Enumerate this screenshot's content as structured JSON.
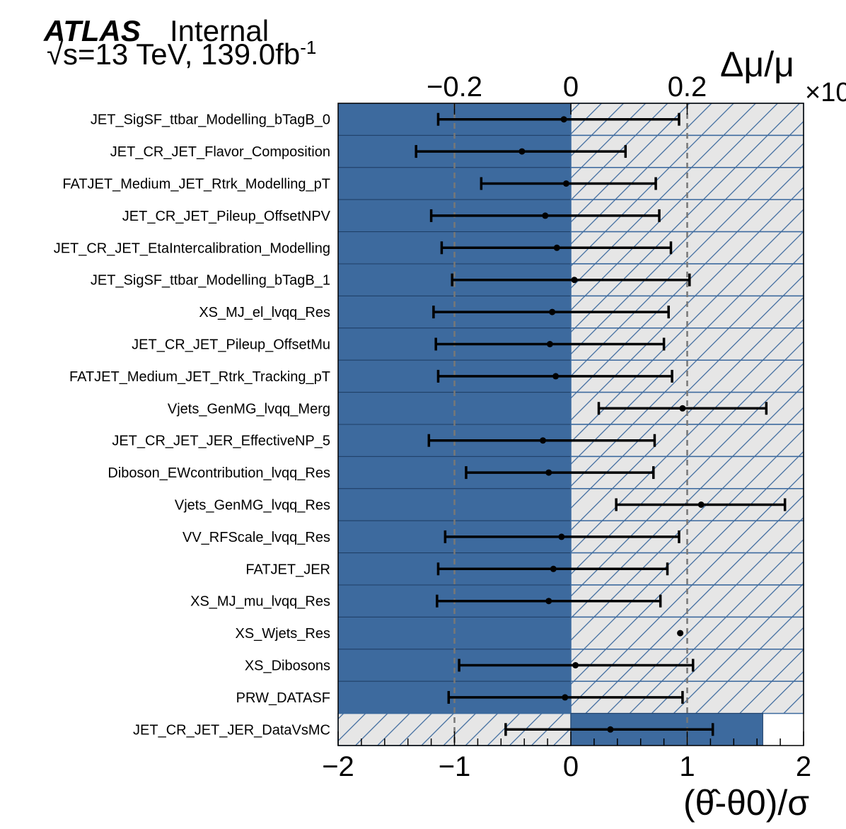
{
  "header": {
    "experiment": "ATLAS",
    "status": "Internal",
    "energy_lumi": "√s=13 TeV, 139.0fb",
    "lumi_exponent": "-1"
  },
  "chart_data": {
    "type": "ranking",
    "bottom_axis": {
      "title": "(θ̂-θ0)/σ",
      "range": [
        -2,
        2
      ],
      "ticks": [
        -2,
        -1,
        0,
        1,
        2
      ],
      "tick_labels": [
        "−2",
        "−1",
        "0",
        "1",
        "2"
      ]
    },
    "top_axis": {
      "title": "Δμ/μ",
      "multiplier": "×10",
      "range": [
        -0.4,
        0.4
      ],
      "ticks": [
        -0.2,
        0,
        0.2
      ],
      "tick_labels": [
        "−0.2",
        "0",
        "0.2"
      ]
    },
    "reference_lines": [
      -1,
      1
    ],
    "colors": {
      "prefit_impact": "#3d6a9e",
      "postfit_hatch": "#3d6a9e",
      "hatch_background": "#e6e6e6",
      "pull": "#000000",
      "reference_line": "#777777"
    },
    "parameters": [
      {
        "name": "JET_SigSF_ttbar_Modelling_bTagB_0",
        "pull": -0.06,
        "err_low": 1.08,
        "err_high": 0.99,
        "impact": [
          -0.4,
          0.4
        ],
        "postfit_impact_negative": false
      },
      {
        "name": "JET_CR_JET_Flavor_Composition",
        "pull": -0.42,
        "err_low": 0.91,
        "err_high": 0.89,
        "impact": [
          -0.4,
          0.4
        ],
        "postfit_impact_negative": false
      },
      {
        "name": "FATJET_Medium_JET_Rtrk_Modelling_pT",
        "pull": -0.04,
        "err_low": 0.73,
        "err_high": 0.77,
        "impact": [
          -0.4,
          0.4
        ],
        "postfit_impact_negative": false
      },
      {
        "name": "JET_CR_JET_Pileup_OffsetNPV",
        "pull": -0.22,
        "err_low": 0.98,
        "err_high": 0.98,
        "impact": [
          -0.4,
          0.4
        ],
        "postfit_impact_negative": false
      },
      {
        "name": "JET_CR_JET_EtaIntercalibration_Modelling",
        "pull": -0.12,
        "err_low": 0.99,
        "err_high": 0.98,
        "impact": [
          -0.4,
          0.4
        ],
        "postfit_impact_negative": false
      },
      {
        "name": "JET_SigSF_ttbar_Modelling_bTagB_1",
        "pull": 0.03,
        "err_low": 1.05,
        "err_high": 0.99,
        "impact": [
          -0.4,
          0.4
        ],
        "postfit_impact_negative": false
      },
      {
        "name": "XS_MJ_el_lvqq_Res",
        "pull": -0.16,
        "err_low": 1.02,
        "err_high": 1.0,
        "impact": [
          -0.4,
          0.4
        ],
        "postfit_impact_negative": false
      },
      {
        "name": "JET_CR_JET_Pileup_OffsetMu",
        "pull": -0.18,
        "err_low": 0.98,
        "err_high": 0.98,
        "impact": [
          -0.4,
          0.4
        ],
        "postfit_impact_negative": false
      },
      {
        "name": "FATJET_Medium_JET_Rtrk_Tracking_pT",
        "pull": -0.13,
        "err_low": 1.01,
        "err_high": 1.0,
        "impact": [
          -0.4,
          0.4
        ],
        "postfit_impact_negative": false
      },
      {
        "name": "Vjets_GenMG_lvqq_Merg",
        "pull": 0.96,
        "err_low": 0.72,
        "err_high": 0.72,
        "impact": [
          -0.4,
          0.4
        ],
        "postfit_impact_negative": false
      },
      {
        "name": "JET_CR_JET_JER_EffectiveNP_5",
        "pull": -0.24,
        "err_low": 0.98,
        "err_high": 0.96,
        "impact": [
          -0.4,
          0.4
        ],
        "postfit_impact_negative": false
      },
      {
        "name": "Diboson_EWcontribution_lvqq_Res",
        "pull": -0.19,
        "err_low": 0.71,
        "err_high": 0.9,
        "impact": [
          -0.4,
          0.4
        ],
        "postfit_impact_negative": false
      },
      {
        "name": "Vjets_GenMG_lvqq_Res",
        "pull": 1.12,
        "err_low": 0.73,
        "err_high": 0.72,
        "impact": [
          -0.4,
          0.4
        ],
        "postfit_impact_negative": false
      },
      {
        "name": "VV_RFScale_lvqq_Res",
        "pull": -0.08,
        "err_low": 1.0,
        "err_high": 1.01,
        "impact": [
          -0.4,
          0.4
        ],
        "postfit_impact_negative": false
      },
      {
        "name": "FATJET_JER",
        "pull": -0.15,
        "err_low": 0.99,
        "err_high": 0.98,
        "impact": [
          -0.4,
          0.4
        ],
        "postfit_impact_negative": false
      },
      {
        "name": "XS_MJ_mu_lvqq_Res",
        "pull": -0.19,
        "err_low": 0.96,
        "err_high": 0.96,
        "impact": [
          -0.4,
          0.4
        ],
        "postfit_impact_negative": false
      },
      {
        "name": "XS_Wjets_Res",
        "pull": 0.94,
        "err_low": 0,
        "err_high": 0,
        "impact": [
          -0.4,
          0.4
        ],
        "postfit_impact_negative": false
      },
      {
        "name": "XS_Dibosons",
        "pull": 0.04,
        "err_low": 1.0,
        "err_high": 1.01,
        "impact": [
          -0.4,
          0.4
        ],
        "postfit_impact_negative": false
      },
      {
        "name": "PRW_DATASF",
        "pull": -0.05,
        "err_low": 1.0,
        "err_high": 1.01,
        "impact": [
          -0.4,
          0.4
        ],
        "postfit_impact_negative": false
      },
      {
        "name": "JET_CR_JET_JER_DataVsMC",
        "pull": 0.34,
        "err_low": 0.9,
        "err_high": 0.88,
        "impact": [
          -0.4,
          0.33
        ],
        "postfit_impact_negative": true
      }
    ]
  }
}
